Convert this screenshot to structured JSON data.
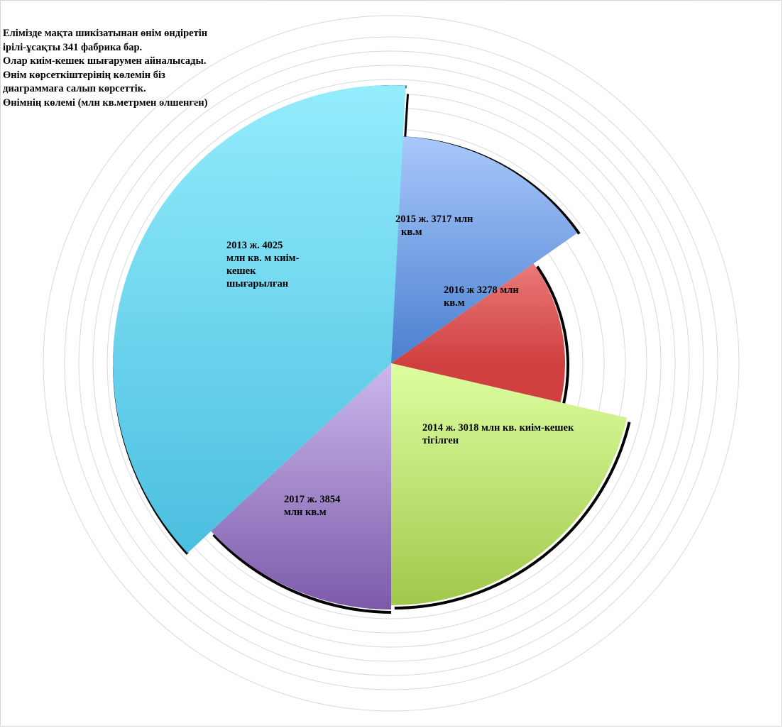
{
  "intro_text": {
    "lines": [
      "Елімізде мақта шикізатынан өнім өндіретін",
      "ірілі-ұсақты 341 фабрика бар.",
      "Олар киім-кешек шығарумен айналысады.",
      "Өнім көрсеткіштерінің көлемін біз",
      "диаграммаға салып көрсеттік.",
      "Өнімнің көлемі (млн кв.метрмен өлшенген)"
    ]
  },
  "chart_data": {
    "type": "pie",
    "title": "",
    "slices": [
      {
        "category": "2015",
        "value": 3717,
        "label_lines": [
          "2015 ж. 3717 млн",
          "кв.м"
        ],
        "color_light": "#a9c8fb",
        "color_dark": "#4a80cf"
      },
      {
        "category": "2016",
        "value": 3278,
        "label_lines": [
          "2016 ж 3278 млн",
          "кв.м"
        ],
        "color_light": "#fba6a2",
        "color_dark": "#d04040"
      },
      {
        "category": "2014",
        "value": 3018,
        "label_lines": [
          "2014 ж. 3018 млн кв. киім-кешек",
          "тігілген"
        ],
        "color_light": "#ddfea0",
        "color_dark": "#a1c84b"
      },
      {
        "category": "2017",
        "value": 3854,
        "label_lines": [
          "2017 ж. 3854",
          "млн кв.м"
        ],
        "color_light": "#cbb8ec",
        "color_dark": "#7c5aaa"
      },
      {
        "category": "2013",
        "value": 4025,
        "label_lines": [
          "2013 ж. 4025",
          "млн кв. м киім-",
          "кешек",
          "шығарылған"
        ],
        "color_light": "#93ecfc",
        "color_dark": "#3db6da"
      }
    ]
  }
}
